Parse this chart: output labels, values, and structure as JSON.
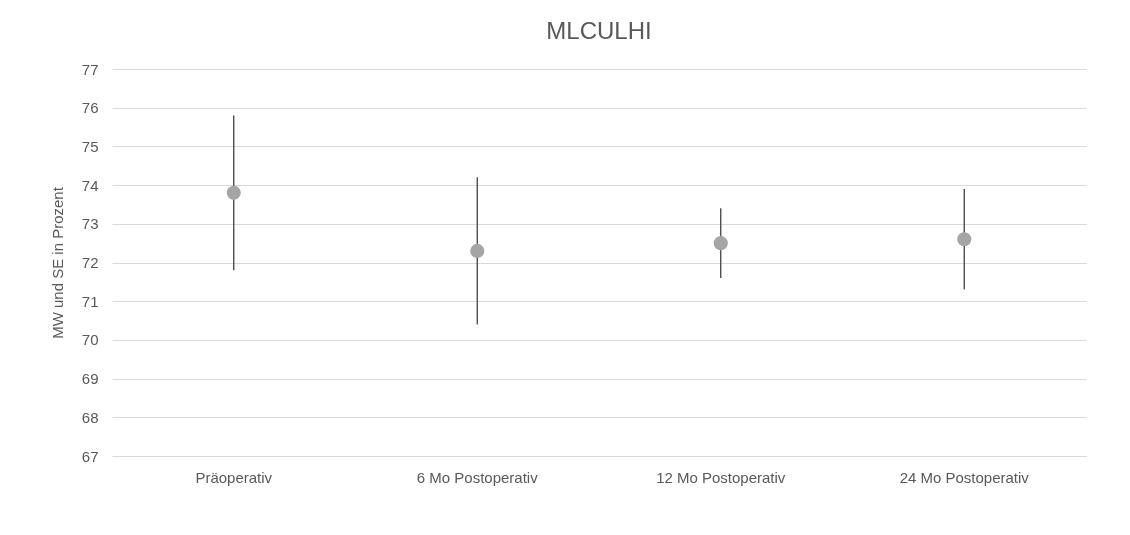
{
  "chart_data": {
    "type": "scatter",
    "title": "MLCULHI",
    "ylabel": "MW und SE in Prozent",
    "categories": [
      "Präoperativ",
      "6 Mo Postoperativ",
      "12 Mo Postoperativ",
      "24 Mo Postoperativ"
    ],
    "series": [
      {
        "color": "#a5a5a5",
        "values": [
          73.8,
          72.3,
          72.5,
          72.6
        ],
        "errors": [
          2.0,
          1.9,
          0.9,
          1.3
        ]
      }
    ],
    "ylim": [
      67,
      77
    ],
    "yticks": [
      67,
      68,
      69,
      70,
      71,
      72,
      73,
      74,
      75,
      76,
      77
    ],
    "grid": "y",
    "marker": "circle"
  }
}
